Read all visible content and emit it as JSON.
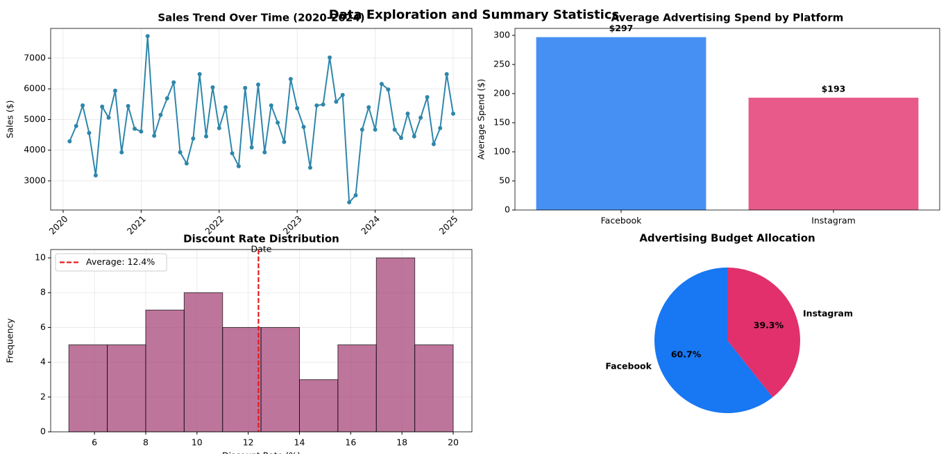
{
  "title": "Data Exploration and Summary Statistics",
  "chart_data": [
    {
      "type": "line",
      "title": "Sales Trend Over Time (2020-2024)",
      "xlabel": "Date",
      "ylabel": "Sales ($)",
      "x": [
        2020.083,
        2020.167,
        2020.25,
        2020.333,
        2020.417,
        2020.5,
        2020.583,
        2020.667,
        2020.75,
        2020.833,
        2020.917,
        2021.0,
        2021.083,
        2021.167,
        2021.25,
        2021.333,
        2021.417,
        2021.5,
        2021.583,
        2021.667,
        2021.75,
        2021.833,
        2021.917,
        2022.0,
        2022.083,
        2022.167,
        2022.25,
        2022.333,
        2022.417,
        2022.5,
        2022.583,
        2022.667,
        2022.75,
        2022.833,
        2022.917,
        2023.0,
        2023.083,
        2023.167,
        2023.25,
        2023.333,
        2023.417,
        2023.5,
        2023.583,
        2023.667,
        2023.75,
        2023.833,
        2023.917,
        2024.0,
        2024.083,
        2024.167,
        2024.25,
        2024.333,
        2024.417,
        2024.5,
        2024.583,
        2024.667,
        2024.75,
        2024.833,
        2024.917,
        2025.0
      ],
      "series": [
        {
          "name": "Sales",
          "color": "#2e86ab",
          "values": [
            4290,
            4790,
            5460,
            4560,
            3180,
            5420,
            5060,
            5940,
            3930,
            5440,
            4700,
            4610,
            7720,
            4470,
            5150,
            5690,
            6210,
            3930,
            3570,
            4380,
            6480,
            4450,
            6050,
            4720,
            5400,
            3900,
            3480,
            6030,
            4090,
            6140,
            3930,
            5460,
            4900,
            4270,
            6320,
            5370,
            4760,
            3430,
            5460,
            5490,
            7020,
            5580,
            5800,
            2300,
            2530,
            4670,
            5400,
            4670,
            6160,
            5980,
            4670,
            4400,
            5190,
            4450,
            5060,
            5730,
            4200,
            4720,
            6480,
            5190
          ]
        }
      ],
      "xlim": [
        2019.84,
        2025.24
      ],
      "xticks": [
        2020,
        2021,
        2022,
        2023,
        2024,
        2025
      ],
      "ylim": [
        2050,
        7970
      ],
      "yticks": [
        3000,
        4000,
        5000,
        6000,
        7000
      ],
      "grid": true
    },
    {
      "type": "bar",
      "title": "Average Advertising Spend by Platform",
      "ylabel": "Average Spend ($)",
      "categories": [
        "Facebook",
        "Instagram"
      ],
      "values": [
        297,
        193
      ],
      "value_labels": [
        "$297",
        "$193"
      ],
      "colors": [
        "#4690f3",
        "#e75a8a"
      ],
      "ylim": [
        0,
        312
      ],
      "yticks": [
        0,
        50,
        100,
        150,
        200,
        250,
        300
      ],
      "grid": false
    },
    {
      "type": "histogram",
      "title": "Discount Rate Distribution",
      "xlabel": "Discount Rate (%)",
      "ylabel": "Frequency",
      "bins": [
        5,
        6.5,
        8,
        9.5,
        11,
        12.5,
        14,
        15.5,
        17,
        18.5,
        20
      ],
      "values": [
        5,
        5,
        7,
        8,
        6,
        6,
        3,
        5,
        10,
        5
      ],
      "color": "#a23b72",
      "alpha": 0.7,
      "mean": 12.4,
      "mean_label": "Average: 12.4%",
      "mean_color": "#e31a1c",
      "legend": "upper left",
      "xlim": [
        4.29,
        20.73
      ],
      "xticks": [
        6,
        8,
        10,
        12,
        14,
        16,
        18,
        20
      ],
      "ylim": [
        0,
        10.48
      ],
      "yticks": [
        0,
        2,
        4,
        6,
        8,
        10
      ],
      "grid": true
    },
    {
      "type": "pie",
      "title": "Advertising Budget Allocation",
      "categories": [
        "Facebook",
        "Instagram"
      ],
      "values": [
        60.7,
        39.3
      ],
      "value_labels": [
        "60.7%",
        "39.3%"
      ],
      "colors": [
        "#1877f2",
        "#e1306c"
      ],
      "startangle": 90
    }
  ]
}
